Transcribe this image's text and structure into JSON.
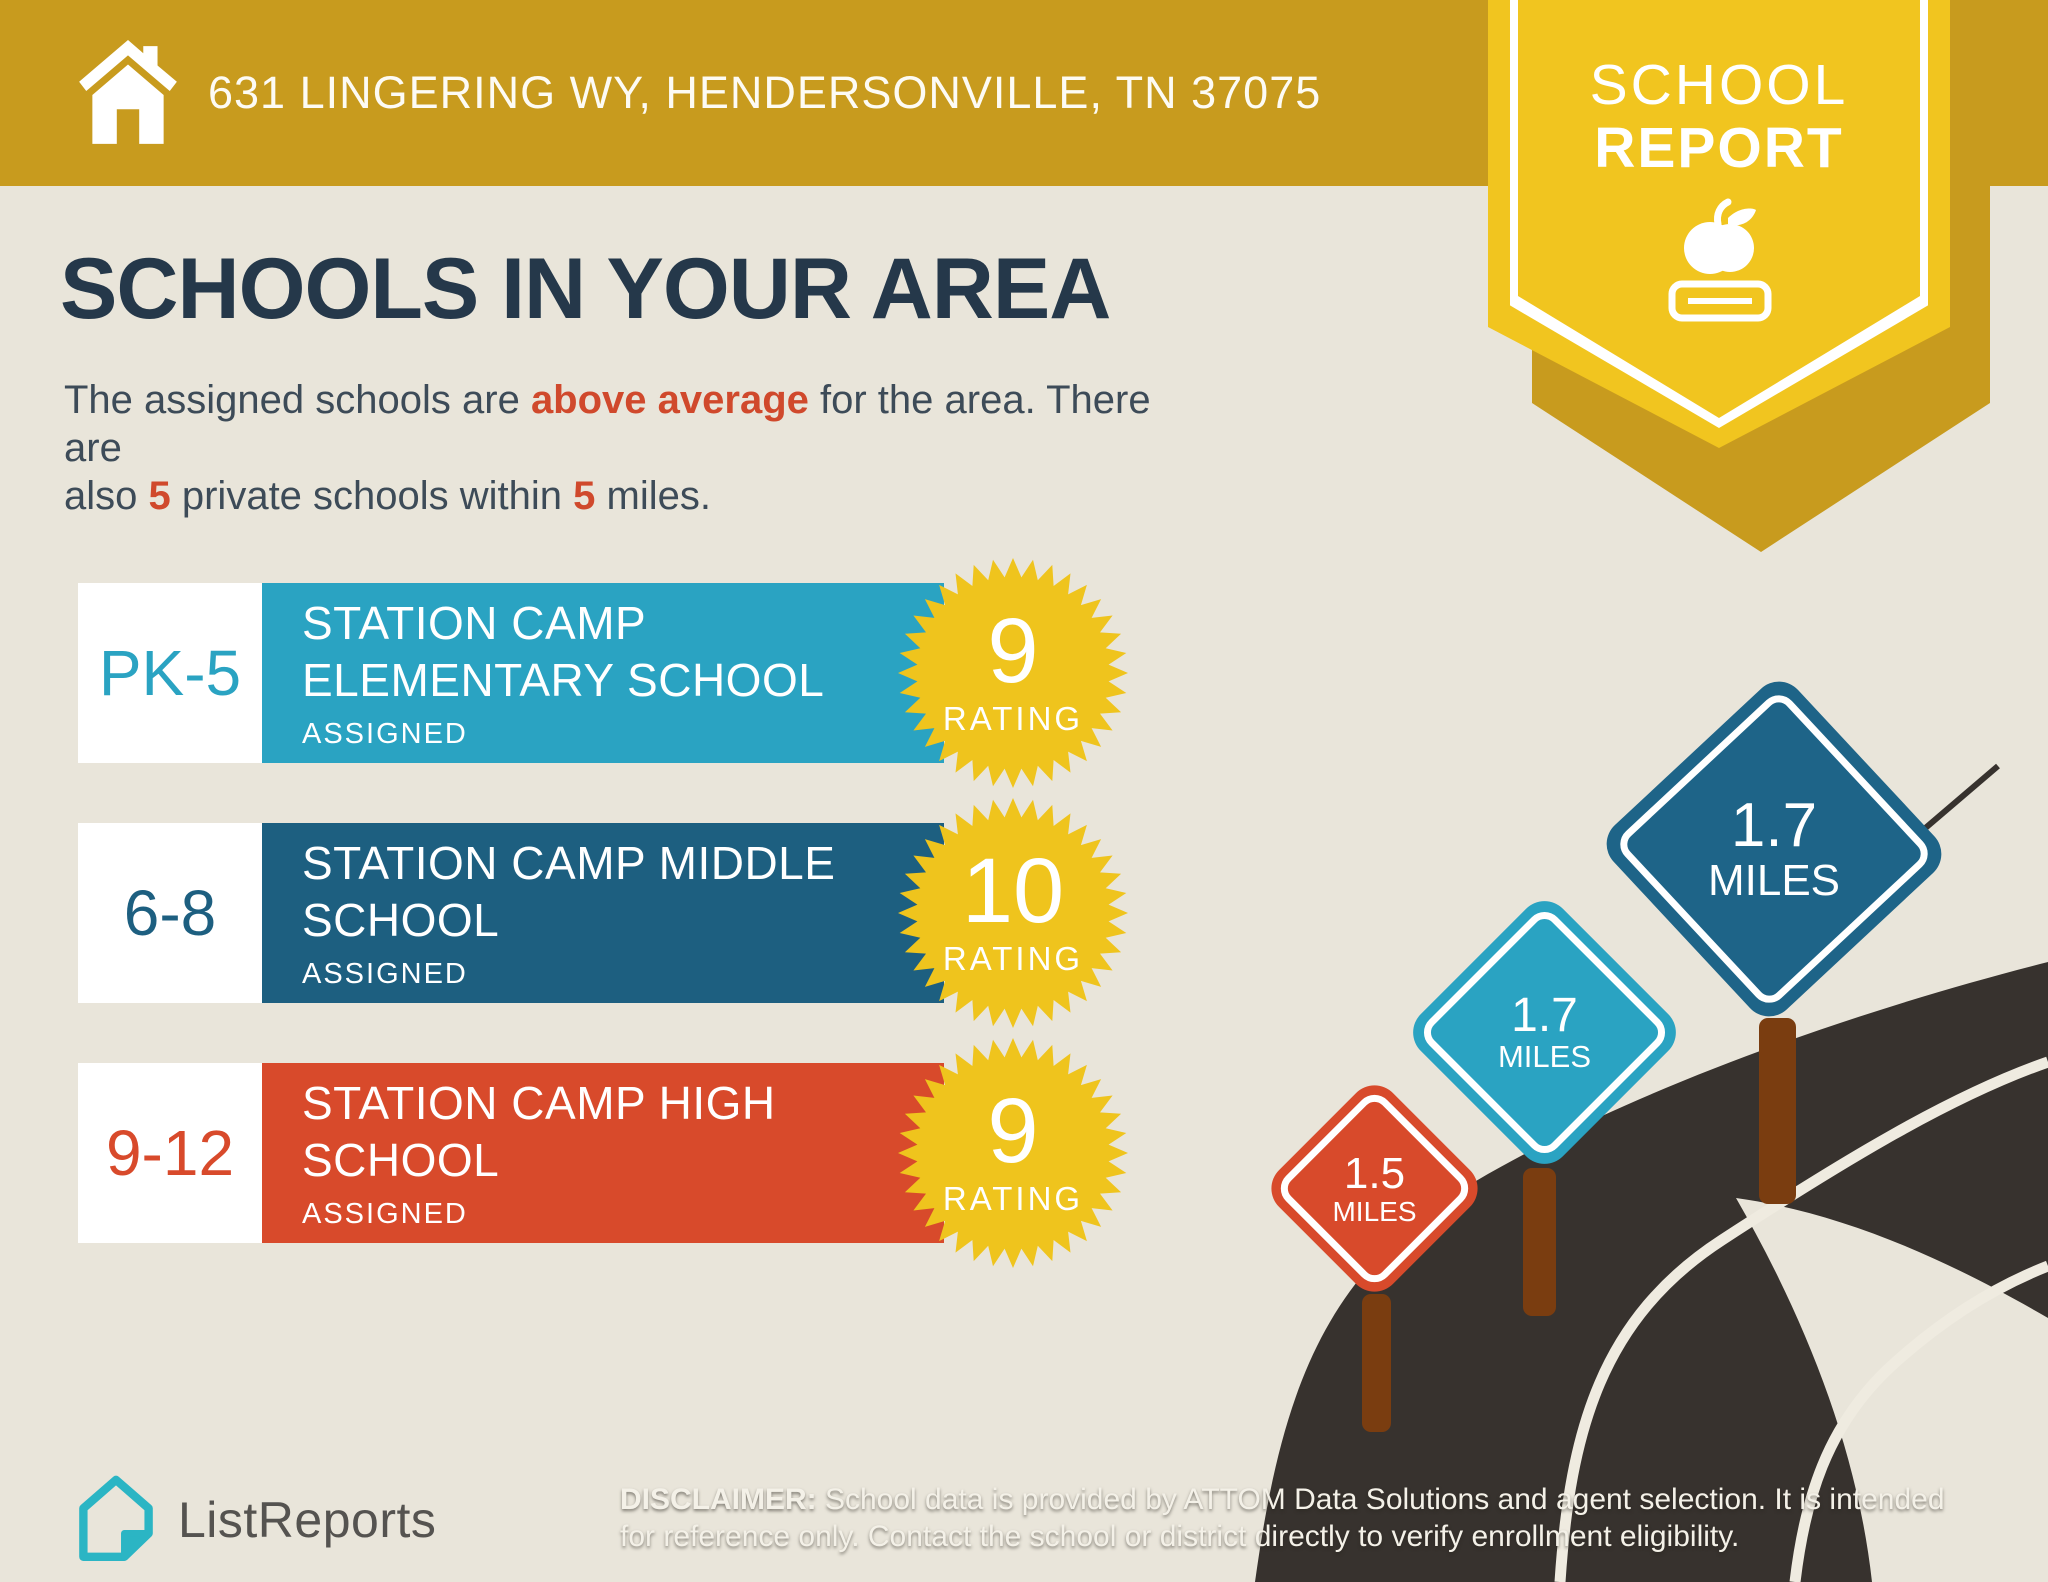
{
  "page": {
    "background": "#E9E5DA"
  },
  "header": {
    "address": "631 LINGERING WY, HENDERSONVILLE, TN 37075",
    "bar_color": "#C89B1E",
    "home_icon": "house-icon"
  },
  "badge": {
    "line1": "SCHOOL",
    "line2": "REPORT",
    "color": "#F1C51F",
    "back_color": "#C89B1E",
    "icon": "apple-on-book-icon"
  },
  "main": {
    "title": "SCHOOLS IN YOUR AREA",
    "accent_color": "#D0492C",
    "subtitle": {
      "t1": "The assigned schools are ",
      "b1": "above average",
      "t2": " for the area. There are",
      "t3": "also ",
      "b2": "5",
      "t4": " private schools within ",
      "b3": "5",
      "t5": " miles."
    }
  },
  "schools": [
    {
      "grades": "PK-5",
      "name_line1": "STATION CAMP",
      "name_line2": "ELEMENTARY SCHOOL",
      "status": "ASSIGNED",
      "rating": "9",
      "rating_label": "RATING",
      "color": "#2AA3C2"
    },
    {
      "grades": "6-8",
      "name_line1": "STATION CAMP MIDDLE",
      "name_line2": "SCHOOL",
      "status": "ASSIGNED",
      "rating": "10",
      "rating_label": "RATING",
      "color": "#1D5F80"
    },
    {
      "grades": "9-12",
      "name_line1": "STATION CAMP HIGH",
      "name_line2": "SCHOOL",
      "status": "ASSIGNED",
      "rating": "9",
      "rating_label": "RATING",
      "color": "#D84A2B"
    }
  ],
  "rating_badge": {
    "color": "#EFC41D"
  },
  "signs": [
    {
      "value": "1.7",
      "unit": "MILES",
      "color": "#1E6488",
      "position": "far"
    },
    {
      "value": "1.7",
      "unit": "MILES",
      "color": "#2AA3C2",
      "position": "middle"
    },
    {
      "value": "1.5",
      "unit": "MILES",
      "color": "#D84A2B",
      "position": "near"
    }
  ],
  "scene": {
    "road_color": "#37322E",
    "lane_line_color": "#EFEBE0",
    "post_color": "#7A3D10"
  },
  "footer": {
    "brand": "ListReports",
    "logo_color": "#2BB5C4",
    "disclaimer_label": "DISCLAIMER:",
    "disclaimer_line1": " School data is provided by ATTOM Data Solutions and agent selection. It is intended",
    "disclaimer_line2": "for reference only. Contact the school or district directly to verify enrollment eligibility."
  }
}
